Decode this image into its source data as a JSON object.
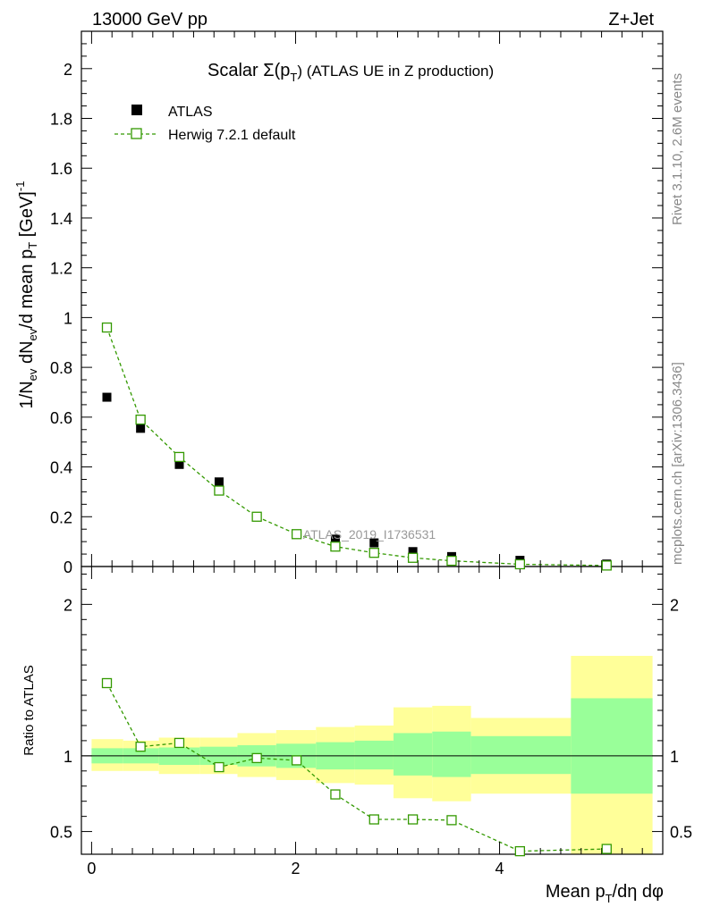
{
  "header": {
    "left": "13000 GeV pp",
    "right": "Z+Jet"
  },
  "side_labels": {
    "rivet": "Rivet 3.1.10,  2.6M events",
    "mcplots": "mcplots.cern.ch [arXiv:1306.3436]"
  },
  "watermark": "ATLAS_2019_I1736531",
  "colors": {
    "mc": "#339900",
    "green_band": "#99ff99",
    "yellow_band": "#ffff99",
    "data": "#000000"
  },
  "chart_data": {
    "type": "scatter",
    "title": "Scalar Σ(p_T) (ATLAS UE in Z production)",
    "title_parts": {
      "prefix": "Scalar Σ(p",
      "sub": "T",
      "suffix": ") (ATLAS UE in Z production)"
    },
    "ylabel": "1/N_ev dN_ev/d mean p_T [GeV]^-1",
    "ylabel_parts": {
      "a": "1/N",
      "a_sub": "ev",
      "b": " dN",
      "b_sub": "ev",
      "c": "/d mean p",
      "c_sub": "T",
      "d": " [GeV]",
      "d_sup": "-1"
    },
    "xlabel": "Mean p_T/dη dφ",
    "xlabel_parts": {
      "a": "Mean p",
      "a_sub": "T",
      "b": "/dη dφ"
    },
    "xlim": [
      -0.1,
      5.6
    ],
    "main": {
      "ylim": [
        0,
        2.15
      ],
      "yticks": [
        0,
        0.2,
        0.4,
        0.6,
        0.8,
        1,
        1.2,
        1.4,
        1.6,
        1.8,
        2
      ],
      "ytick_labels": [
        "0",
        "0.2",
        "0.4",
        "0.6",
        "0.8",
        "1",
        "1.2",
        "1.4",
        "1.6",
        "1.8",
        "2"
      ]
    },
    "legend": {
      "position": "top-left",
      "entries": [
        "ATLAS",
        "Herwig 7.2.1 default"
      ]
    },
    "series": [
      {
        "name": "ATLAS",
        "marker": "filled-square",
        "x": [
          0.15,
          0.48,
          0.86,
          1.25,
          1.62,
          2.01,
          2.39,
          2.77,
          3.15,
          3.53,
          4.2,
          5.05
        ],
        "y": [
          0.68,
          0.555,
          0.41,
          0.34,
          0.2,
          0.13,
          0.11,
          0.095,
          0.06,
          0.04,
          0.025,
          0.01
        ]
      },
      {
        "name": "Herwig 7.2.1 default",
        "marker": "open-square",
        "line": "dashed",
        "x": [
          0.15,
          0.48,
          0.86,
          1.25,
          1.62,
          2.01,
          2.39,
          2.77,
          3.15,
          3.53,
          4.2,
          5.05
        ],
        "y": [
          0.96,
          0.59,
          0.44,
          0.305,
          0.2,
          0.13,
          0.08,
          0.055,
          0.035,
          0.023,
          0.009,
          0.004
        ]
      }
    ],
    "ratio": {
      "ylabel": "Ratio to ATLAS",
      "ylim": [
        0.35,
        2.25
      ],
      "yticks": [
        0.5,
        1,
        2
      ],
      "ytick_labels": [
        "0.5",
        "1",
        "2"
      ],
      "minor_yticks": [
        0.6,
        0.7,
        0.8,
        0.9,
        1.1,
        1.2,
        1.3,
        1.4,
        1.5,
        1.6,
        1.7,
        1.8,
        1.9,
        2.1,
        2.2
      ],
      "values": [
        1.48,
        1.06,
        1.085,
        0.925,
        0.985,
        0.97,
        0.745,
        0.58,
        0.58,
        0.575,
        0.37,
        0.385
      ],
      "bins": [
        {
          "lo": 0.0,
          "hi": 0.31,
          "green": [
            0.95,
            1.05
          ],
          "yellow": [
            0.9,
            1.11
          ]
        },
        {
          "lo": 0.31,
          "hi": 0.66,
          "green": [
            0.95,
            1.05
          ],
          "yellow": [
            0.9,
            1.1
          ]
        },
        {
          "lo": 0.66,
          "hi": 1.06,
          "green": [
            0.94,
            1.055
          ],
          "yellow": [
            0.88,
            1.12
          ]
        },
        {
          "lo": 1.06,
          "hi": 1.43,
          "green": [
            0.94,
            1.06
          ],
          "yellow": [
            0.88,
            1.12
          ]
        },
        {
          "lo": 1.43,
          "hi": 1.81,
          "green": [
            0.93,
            1.07
          ],
          "yellow": [
            0.86,
            1.15
          ]
        },
        {
          "lo": 1.81,
          "hi": 2.2,
          "green": [
            0.92,
            1.08
          ],
          "yellow": [
            0.84,
            1.17
          ]
        },
        {
          "lo": 2.2,
          "hi": 2.58,
          "green": [
            0.91,
            1.09
          ],
          "yellow": [
            0.82,
            1.19
          ]
        },
        {
          "lo": 2.58,
          "hi": 2.96,
          "green": [
            0.91,
            1.1
          ],
          "yellow": [
            0.81,
            1.2
          ]
        },
        {
          "lo": 2.96,
          "hi": 3.34,
          "green": [
            0.87,
            1.15
          ],
          "yellow": [
            0.72,
            1.32
          ]
        },
        {
          "lo": 3.34,
          "hi": 3.72,
          "green": [
            0.86,
            1.16
          ],
          "yellow": [
            0.7,
            1.33
          ]
        },
        {
          "lo": 3.72,
          "hi": 4.7,
          "green": [
            0.88,
            1.13
          ],
          "yellow": [
            0.75,
            1.25
          ]
        },
        {
          "lo": 4.7,
          "hi": 5.5,
          "green": [
            0.75,
            1.38
          ],
          "yellow": [
            0.35,
            1.66
          ]
        }
      ]
    },
    "xticks": [
      0,
      2,
      4
    ],
    "xtick_labels": [
      "0",
      "2",
      "4"
    ],
    "minor_xticks": [
      0.2,
      0.4,
      0.6,
      0.8,
      1.0,
      1.2,
      1.4,
      1.6,
      1.8,
      2.2,
      2.4,
      2.6,
      2.8,
      3.0,
      3.2,
      3.4,
      3.6,
      3.8,
      4.2,
      4.4,
      4.6,
      4.8,
      5.0,
      5.2,
      5.4
    ]
  }
}
